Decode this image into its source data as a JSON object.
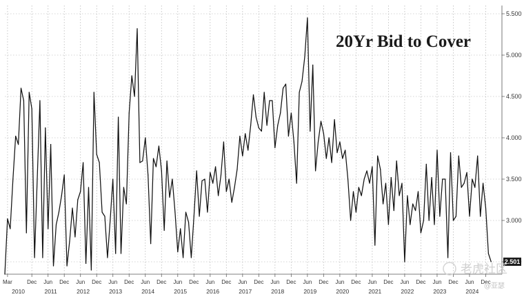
{
  "chart_data": {
    "type": "line",
    "title": "20Yr Bid to Cover",
    "xlabel": "",
    "ylabel": "",
    "ylim": [
      2.35,
      5.6
    ],
    "y_ticks": [
      "2.500",
      "3.000",
      "3.500",
      "4.000",
      "4.500",
      "5.000",
      "5.500"
    ],
    "y_tick_values": [
      2.5,
      3.0,
      3.5,
      4.0,
      4.5,
      5.0,
      5.5
    ],
    "x_range": [
      "2010-02",
      "2025-06"
    ],
    "grid": "dotted vertical and horizontal",
    "last_value_label": "2.501",
    "x_month_ticks": [
      {
        "label": "Mar",
        "date": "2010-03"
      },
      {
        "label": "Dec",
        "date": "2010-12"
      },
      {
        "label": "Jun",
        "date": "2011-06"
      },
      {
        "label": "Dec",
        "date": "2011-12"
      },
      {
        "label": "Jun",
        "date": "2012-06"
      },
      {
        "label": "Dec",
        "date": "2012-12"
      },
      {
        "label": "Jun",
        "date": "2013-06"
      },
      {
        "label": "Dec",
        "date": "2013-12"
      },
      {
        "label": "Jun",
        "date": "2014-06"
      },
      {
        "label": "Dec",
        "date": "2014-12"
      },
      {
        "label": "Jun",
        "date": "2015-06"
      },
      {
        "label": "Dec",
        "date": "2015-12"
      },
      {
        "label": "Jun",
        "date": "2016-06"
      },
      {
        "label": "Dec",
        "date": "2016-12"
      },
      {
        "label": "Jun",
        "date": "2017-06"
      },
      {
        "label": "Dec",
        "date": "2017-12"
      },
      {
        "label": "Jun",
        "date": "2018-06"
      },
      {
        "label": "Dec",
        "date": "2018-12"
      },
      {
        "label": "Jun",
        "date": "2019-06"
      },
      {
        "label": "Dec",
        "date": "2019-12"
      },
      {
        "label": "Jun",
        "date": "2020-06"
      },
      {
        "label": "Dec",
        "date": "2020-12"
      },
      {
        "label": "Jun",
        "date": "2021-06"
      },
      {
        "label": "Dec",
        "date": "2021-12"
      },
      {
        "label": "Jun",
        "date": "2022-06"
      },
      {
        "label": "Dec",
        "date": "2022-12"
      },
      {
        "label": "Jun",
        "date": "2023-06"
      },
      {
        "label": "Dec",
        "date": "2023-12"
      },
      {
        "label": "Jun",
        "date": "2024-06"
      },
      {
        "label": "Dec",
        "date": "2024-12"
      }
    ],
    "x_year_labels": [
      "2010",
      "2011",
      "2012",
      "2013",
      "2014",
      "2015",
      "2016",
      "2017",
      "2018",
      "2019",
      "2020",
      "2021",
      "2022",
      "2023",
      "2024"
    ],
    "series": [
      {
        "color": "#111111",
        "points": [
          [
            "2010-02",
            2.35
          ],
          [
            "2010-03",
            3.02
          ],
          [
            "2010-04",
            2.9
          ],
          [
            "2010-05",
            3.5
          ],
          [
            "2010-06",
            4.02
          ],
          [
            "2010-07",
            3.92
          ],
          [
            "2010-08",
            4.6
          ],
          [
            "2010-09",
            4.45
          ],
          [
            "2010-10",
            2.85
          ],
          [
            "2010-11",
            4.55
          ],
          [
            "2010-12",
            4.35
          ],
          [
            "2011-01",
            2.55
          ],
          [
            "2011-02",
            3.5
          ],
          [
            "2011-03",
            4.45
          ],
          [
            "2011-04",
            2.55
          ],
          [
            "2011-05",
            4.12
          ],
          [
            "2011-06",
            2.9
          ],
          [
            "2011-07",
            3.92
          ],
          [
            "2011-08",
            2.45
          ],
          [
            "2011-09",
            2.95
          ],
          [
            "2011-10",
            3.1
          ],
          [
            "2011-11",
            3.3
          ],
          [
            "2011-12",
            3.55
          ],
          [
            "2012-01",
            2.45
          ],
          [
            "2012-02",
            2.75
          ],
          [
            "2012-03",
            3.15
          ],
          [
            "2012-04",
            2.8
          ],
          [
            "2012-05",
            3.25
          ],
          [
            "2012-06",
            3.35
          ],
          [
            "2012-07",
            3.7
          ],
          [
            "2012-08",
            2.48
          ],
          [
            "2012-09",
            3.4
          ],
          [
            "2012-10",
            2.4
          ],
          [
            "2012-11",
            4.55
          ],
          [
            "2012-12",
            3.8
          ],
          [
            "2013-01",
            3.7
          ],
          [
            "2013-02",
            3.1
          ],
          [
            "2013-03",
            3.05
          ],
          [
            "2013-04",
            2.55
          ],
          [
            "2013-05",
            3.0
          ],
          [
            "2013-06",
            3.5
          ],
          [
            "2013-07",
            2.6
          ],
          [
            "2013-08",
            4.25
          ],
          [
            "2013-09",
            2.6
          ],
          [
            "2013-10",
            3.4
          ],
          [
            "2013-11",
            3.2
          ],
          [
            "2013-12",
            4.3
          ],
          [
            "2014-01",
            4.75
          ],
          [
            "2014-02",
            4.5
          ],
          [
            "2014-03",
            5.32
          ],
          [
            "2014-04",
            3.7
          ],
          [
            "2014-05",
            3.72
          ],
          [
            "2014-06",
            4.0
          ],
          [
            "2014-07",
            3.55
          ],
          [
            "2014-08",
            2.72
          ],
          [
            "2014-09",
            3.75
          ],
          [
            "2014-10",
            3.65
          ],
          [
            "2014-11",
            3.9
          ],
          [
            "2014-12",
            3.6
          ],
          [
            "2015-01",
            2.88
          ],
          [
            "2015-02",
            3.72
          ],
          [
            "2015-03",
            3.28
          ],
          [
            "2015-04",
            3.5
          ],
          [
            "2015-05",
            3.1
          ],
          [
            "2015-06",
            2.62
          ],
          [
            "2015-07",
            2.9
          ],
          [
            "2015-08",
            2.55
          ],
          [
            "2015-09",
            3.1
          ],
          [
            "2015-10",
            2.98
          ],
          [
            "2015-11",
            2.55
          ],
          [
            "2015-12",
            3.05
          ],
          [
            "2016-01",
            3.6
          ],
          [
            "2016-02",
            3.05
          ],
          [
            "2016-03",
            3.48
          ],
          [
            "2016-04",
            3.5
          ],
          [
            "2016-05",
            3.1
          ],
          [
            "2016-06",
            3.58
          ],
          [
            "2016-07",
            3.45
          ],
          [
            "2016-08",
            3.65
          ],
          [
            "2016-09",
            3.3
          ],
          [
            "2016-10",
            3.55
          ],
          [
            "2016-11",
            3.95
          ],
          [
            "2016-12",
            3.35
          ],
          [
            "2017-01",
            3.5
          ],
          [
            "2017-02",
            3.22
          ],
          [
            "2017-03",
            3.4
          ],
          [
            "2017-04",
            3.62
          ],
          [
            "2017-05",
            4.02
          ],
          [
            "2017-06",
            3.78
          ],
          [
            "2017-07",
            4.05
          ],
          [
            "2017-08",
            3.85
          ],
          [
            "2017-09",
            4.15
          ],
          [
            "2017-10",
            4.52
          ],
          [
            "2017-11",
            4.25
          ],
          [
            "2017-12",
            4.12
          ],
          [
            "2018-01",
            4.08
          ],
          [
            "2018-02",
            4.55
          ],
          [
            "2018-03",
            4.15
          ],
          [
            "2018-04",
            4.45
          ],
          [
            "2018-05",
            4.45
          ],
          [
            "2018-06",
            3.88
          ],
          [
            "2018-07",
            4.15
          ],
          [
            "2018-08",
            4.3
          ],
          [
            "2018-09",
            4.6
          ],
          [
            "2018-10",
            4.65
          ],
          [
            "2018-11",
            4.02
          ],
          [
            "2018-12",
            4.3
          ],
          [
            "2019-01",
            3.95
          ],
          [
            "2019-02",
            3.45
          ],
          [
            "2019-03",
            4.55
          ],
          [
            "2019-04",
            4.68
          ],
          [
            "2019-05",
            4.98
          ],
          [
            "2019-06",
            5.45
          ],
          [
            "2019-07",
            4.08
          ],
          [
            "2019-08",
            4.88
          ],
          [
            "2019-09",
            3.6
          ],
          [
            "2019-10",
            3.95
          ],
          [
            "2019-11",
            4.2
          ],
          [
            "2019-12",
            4.05
          ],
          [
            "2020-01",
            3.75
          ],
          [
            "2020-02",
            4.0
          ],
          [
            "2020-03",
            3.7
          ],
          [
            "2020-04",
            4.22
          ],
          [
            "2020-05",
            3.82
          ],
          [
            "2020-06",
            3.95
          ],
          [
            "2020-07",
            3.75
          ],
          [
            "2020-08",
            3.85
          ],
          [
            "2020-09",
            3.5
          ],
          [
            "2020-10",
            3.0
          ],
          [
            "2020-11",
            3.35
          ],
          [
            "2020-12",
            3.1
          ],
          [
            "2021-01",
            3.4
          ],
          [
            "2021-02",
            3.3
          ],
          [
            "2021-03",
            3.5
          ],
          [
            "2021-04",
            3.6
          ],
          [
            "2021-05",
            3.45
          ],
          [
            "2021-06",
            3.65
          ],
          [
            "2021-07",
            2.7
          ],
          [
            "2021-08",
            3.78
          ],
          [
            "2021-09",
            3.62
          ],
          [
            "2021-10",
            3.2
          ],
          [
            "2021-11",
            3.45
          ],
          [
            "2021-12",
            2.95
          ],
          [
            "2022-01",
            3.52
          ],
          [
            "2022-02",
            3.12
          ],
          [
            "2022-03",
            3.72
          ],
          [
            "2022-04",
            3.3
          ],
          [
            "2022-05",
            3.45
          ],
          [
            "2022-06",
            2.5
          ],
          [
            "2022-07",
            3.3
          ],
          [
            "2022-08",
            2.95
          ],
          [
            "2022-09",
            3.2
          ],
          [
            "2022-10",
            3.12
          ],
          [
            "2022-11",
            3.35
          ],
          [
            "2022-12",
            2.85
          ],
          [
            "2023-01",
            3.0
          ],
          [
            "2023-02",
            3.68
          ],
          [
            "2023-03",
            3.0
          ],
          [
            "2023-04",
            3.52
          ],
          [
            "2023-05",
            2.95
          ],
          [
            "2023-06",
            3.85
          ],
          [
            "2023-07",
            3.05
          ],
          [
            "2023-08",
            3.5
          ],
          [
            "2023-09",
            3.5
          ],
          [
            "2023-10",
            2.55
          ],
          [
            "2023-11",
            3.82
          ],
          [
            "2023-12",
            3.0
          ],
          [
            "2024-01",
            3.05
          ],
          [
            "2024-02",
            3.78
          ],
          [
            "2024-03",
            3.4
          ],
          [
            "2024-04",
            3.45
          ],
          [
            "2024-05",
            3.58
          ],
          [
            "2024-06",
            3.05
          ],
          [
            "2024-07",
            3.5
          ],
          [
            "2024-08",
            3.4
          ],
          [
            "2024-09",
            3.78
          ],
          [
            "2024-10",
            3.05
          ],
          [
            "2024-11",
            3.45
          ],
          [
            "2024-12",
            3.15
          ],
          [
            "2025-01",
            2.6
          ],
          [
            "2025-02",
            2.501
          ]
        ]
      }
    ]
  },
  "watermark": {
    "main": "老虎社区",
    "sub": "@亚瑟"
  }
}
